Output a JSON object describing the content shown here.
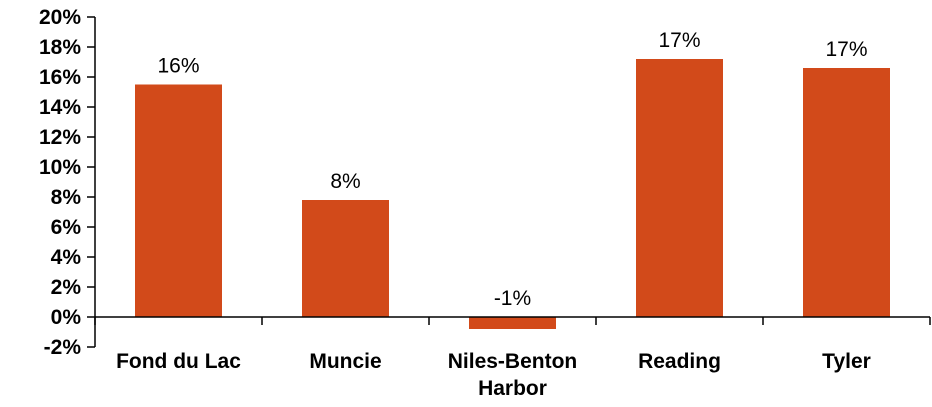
{
  "chart_data": {
    "type": "bar",
    "title": "",
    "xlabel": "",
    "ylabel": "",
    "categories": [
      [
        "Fond du Lac"
      ],
      [
        "Muncie"
      ],
      [
        "Niles-Benton",
        "Harbor"
      ],
      [
        "Reading"
      ],
      [
        "Tyler"
      ]
    ],
    "values": [
      15.5,
      7.8,
      -0.8,
      17.2,
      16.6
    ],
    "data_labels": [
      "16%",
      "8%",
      "-1%",
      "17%",
      "17%"
    ],
    "ylim": [
      -2,
      20
    ],
    "y_ticks": [
      -2,
      0,
      2,
      4,
      6,
      8,
      10,
      12,
      14,
      16,
      18,
      20
    ],
    "y_tick_labels": [
      "-2%",
      "0%",
      "2%",
      "4%",
      "6%",
      "8%",
      "10%",
      "12%",
      "14%",
      "16%",
      "18%",
      "20%"
    ],
    "grid": false,
    "legend": "none",
    "bar_color": "#D24A1A"
  }
}
